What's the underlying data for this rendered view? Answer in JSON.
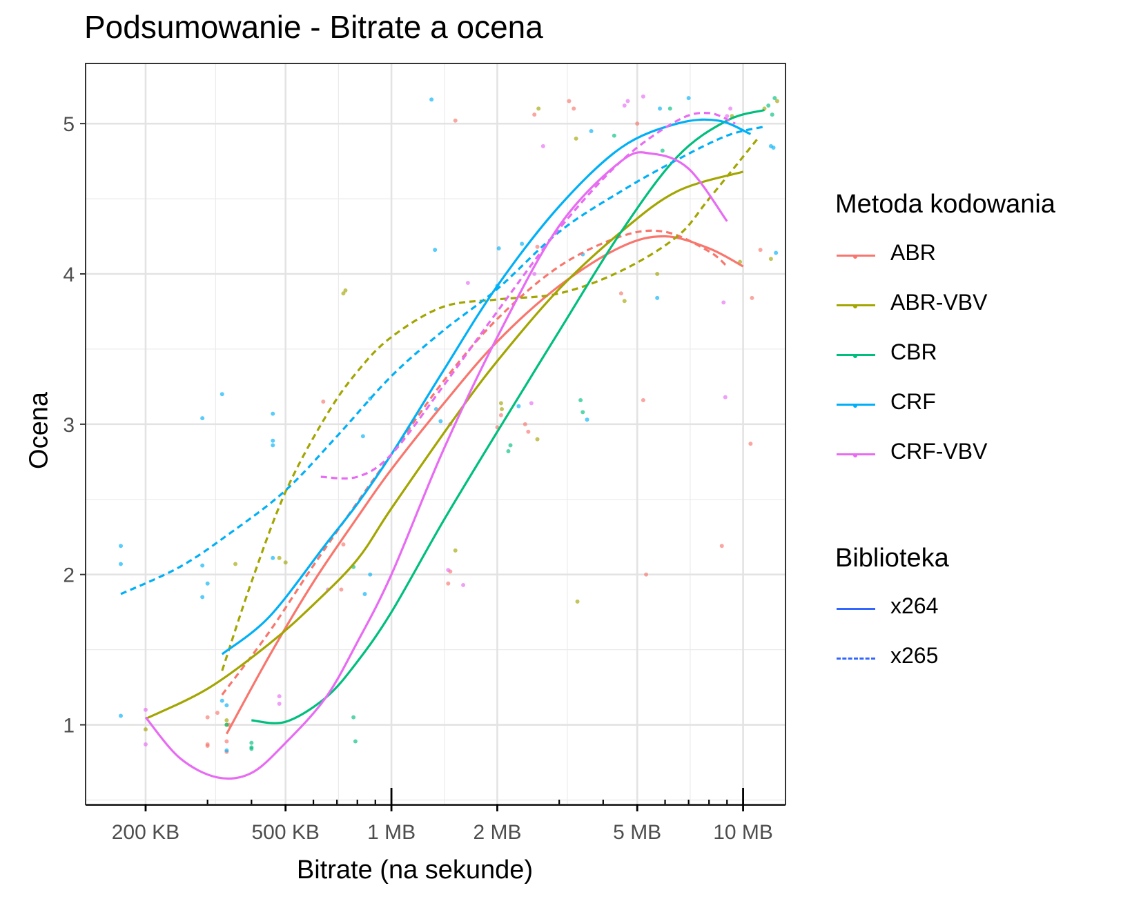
{
  "title": "Podsumowanie - Bitrate a ocena",
  "x_axis_title": "Bitrate  (na sekunde)",
  "y_axis_title": "Ocena",
  "legend_color": {
    "title": "Metoda kodowania",
    "items": [
      {
        "label": "ABR",
        "color": "#F8766D"
      },
      {
        "label": "ABR-VBV",
        "color": "#A3A500"
      },
      {
        "label": "CBR",
        "color": "#00BF7D"
      },
      {
        "label": "CRF",
        "color": "#00B0F6"
      },
      {
        "label": "CRF-VBV",
        "color": "#E76BF3"
      }
    ]
  },
  "legend_linetype": {
    "title": "Biblioteka",
    "items": [
      {
        "label": "x264",
        "linetype": "solid",
        "color": "#3366FF"
      },
      {
        "label": "x265",
        "linetype": "dashed",
        "color": "#3366FF"
      }
    ]
  },
  "chart_data": {
    "type": "scatter",
    "title": "Podsumowanie - Bitrate a ocena",
    "xlabel": "Bitrate  (na sekunde)",
    "ylabel": "Ocena",
    "x_scale": "log10",
    "x_unit": "KB",
    "xlim": [
      135,
      13200
    ],
    "ylim": [
      0.47,
      5.4
    ],
    "x_ticks": [
      {
        "value": 200,
        "label": "200 KB"
      },
      {
        "value": 500,
        "label": "500 KB"
      },
      {
        "value": 1000,
        "label": "1 MB"
      },
      {
        "value": 2000,
        "label": "2 MB"
      },
      {
        "value": 5000,
        "label": "5 MB"
      },
      {
        "value": 10000,
        "label": "10 MB"
      }
    ],
    "x_minor_ticks": [
      300,
      400,
      600,
      700,
      800,
      900,
      3000,
      4000,
      6000,
      7000,
      8000,
      9000
    ],
    "y_ticks": [
      1,
      2,
      3,
      4,
      5
    ],
    "grid": true,
    "legend_position": "right",
    "series": [
      {
        "name": "ABR",
        "library": "x264",
        "color": "#F8766D",
        "x": [
          340,
          450,
          600,
          800,
          1000,
          1400,
          2000,
          3000,
          4500,
          6000,
          8000,
          10000
        ],
        "y": [
          0.94,
          1.46,
          1.95,
          2.38,
          2.7,
          3.13,
          3.55,
          3.92,
          4.18,
          4.25,
          4.17,
          4.05
        ]
      },
      {
        "name": "ABR",
        "library": "x265",
        "color": "#F8766D",
        "x": [
          330,
          450,
          600,
          800,
          1000,
          1400,
          2000,
          3000,
          4500,
          6000,
          8000,
          9000
        ],
        "y": [
          1.2,
          1.62,
          2.06,
          2.48,
          2.8,
          3.28,
          3.7,
          4.05,
          4.25,
          4.28,
          4.15,
          4.05
        ]
      },
      {
        "name": "ABR-VBV",
        "library": "x264",
        "color": "#A3A500",
        "x": [
          200,
          300,
          450,
          600,
          800,
          1000,
          1500,
          2000,
          3000,
          4500,
          6500,
          10000
        ],
        "y": [
          1.04,
          1.24,
          1.54,
          1.8,
          2.1,
          2.44,
          3.03,
          3.42,
          3.9,
          4.28,
          4.55,
          4.68
        ]
      },
      {
        "name": "ABR-VBV",
        "library": "x265",
        "color": "#A3A500",
        "x": [
          330,
          400,
          500,
          650,
          800,
          1000,
          1400,
          2000,
          3000,
          4500,
          6500,
          8000,
          11000
        ],
        "y": [
          1.36,
          1.95,
          2.55,
          3.05,
          3.35,
          3.58,
          3.78,
          3.83,
          3.87,
          4.02,
          4.25,
          4.5,
          4.9
        ]
      },
      {
        "name": "CBR",
        "library": "x264",
        "color": "#00BF7D",
        "x": [
          400,
          500,
          650,
          800,
          1000,
          1400,
          2000,
          3000,
          4500,
          6500,
          9000,
          11500
        ],
        "y": [
          1.03,
          1.02,
          1.18,
          1.42,
          1.75,
          2.35,
          2.95,
          3.62,
          4.28,
          4.78,
          5.02,
          5.09
        ]
      },
      {
        "name": "CRF",
        "library": "x264",
        "color": "#00B0F6",
        "x": [
          330,
          450,
          650,
          800,
          1000,
          1400,
          2000,
          3000,
          4500,
          6500,
          8500,
          10500
        ],
        "y": [
          1.47,
          1.72,
          2.2,
          2.47,
          2.8,
          3.35,
          3.92,
          4.45,
          4.84,
          5.0,
          5.02,
          4.93
        ]
      },
      {
        "name": "CRF",
        "library": "x265",
        "color": "#00B0F6",
        "x": [
          170,
          250,
          350,
          500,
          700,
          1000,
          1400,
          2000,
          3000,
          4500,
          6500,
          9000,
          11500
        ],
        "y": [
          1.87,
          2.05,
          2.28,
          2.56,
          2.92,
          3.32,
          3.62,
          3.9,
          4.28,
          4.55,
          4.76,
          4.92,
          4.98
        ]
      },
      {
        "name": "CRF-VBV",
        "library": "x264",
        "color": "#E76BF3",
        "x": [
          200,
          250,
          320,
          400,
          500,
          650,
          800,
          1000,
          1400,
          2000,
          3000,
          4500,
          5500,
          7000,
          9000
        ],
        "y": [
          1.05,
          0.78,
          0.65,
          0.68,
          0.88,
          1.18,
          1.55,
          2.0,
          2.82,
          3.58,
          4.32,
          4.75,
          4.8,
          4.7,
          4.35
        ]
      },
      {
        "name": "CRF-VBV",
        "library": "x265",
        "color": "#E76BF3",
        "x": [
          630,
          800,
          1000,
          1400,
          2000,
          3000,
          4500,
          6500,
          8000,
          9500
        ],
        "y": [
          2.65,
          2.65,
          2.8,
          3.25,
          3.75,
          4.3,
          4.75,
          5.02,
          5.07,
          5.0
        ]
      }
    ],
    "points": [
      {
        "group": "ABR",
        "color": "#F8766D",
        "x": [
          300,
          320,
          340,
          300,
          345,
          640,
          720,
          730,
          1450,
          1470,
          1520,
          2000,
          2050,
          2400,
          2450,
          3200,
          3300,
          4500,
          5200,
          5300,
          8700,
          10500,
          10600,
          11200,
          300,
          340,
          2550,
          2600,
          5000
        ],
        "y": [
          0.87,
          1.08,
          0.82,
          1.05,
          1.0,
          3.15,
          1.9,
          2.2,
          1.94,
          2.02,
          5.02,
          2.98,
          3.06,
          3.0,
          2.95,
          5.15,
          5.1,
          3.87,
          3.16,
          2.0,
          2.19,
          2.87,
          3.84,
          4.16,
          0.86,
          0.89,
          5.06,
          4.18,
          5.0
        ]
      },
      {
        "group": "ABR-VBV",
        "color": "#A3A500",
        "x": [
          200,
          340,
          360,
          480,
          500,
          730,
          740,
          1520,
          2050,
          2060,
          2600,
          2620,
          3350,
          3380,
          4600,
          5700,
          9800,
          12000,
          11500,
          12500,
          340,
          9300
        ],
        "y": [
          0.97,
          1.03,
          2.07,
          2.11,
          2.08,
          3.87,
          3.89,
          2.16,
          3.14,
          3.1,
          2.9,
          5.1,
          4.9,
          1.82,
          3.82,
          4.0,
          4.08,
          4.1,
          5.1,
          5.15,
          1.0,
          5.05
        ]
      },
      {
        "group": "CBR",
        "color": "#00BF7D",
        "x": [
          340,
          400,
          400,
          780,
          790,
          2150,
          2180,
          3450,
          3500,
          4300,
          5900,
          6200,
          11800,
          12100,
          12300,
          400,
          780
        ],
        "y": [
          1.0,
          0.84,
          0.88,
          1.05,
          0.89,
          2.82,
          2.86,
          3.16,
          3.08,
          4.92,
          4.82,
          5.1,
          5.12,
          5.06,
          5.17,
          0.85,
          2.05
        ]
      },
      {
        "group": "CRF",
        "color": "#00B0F6",
        "x": [
          170,
          170,
          170,
          290,
          290,
          290,
          300,
          330,
          330,
          460,
          460,
          460,
          460,
          830,
          840,
          870,
          870,
          1300,
          1330,
          1380,
          1340,
          2000,
          2020,
          2300,
          2350,
          3500,
          3600,
          3700,
          5700,
          5800,
          7000,
          12000,
          12200,
          12400,
          340,
          340
        ],
        "y": [
          2.19,
          2.07,
          1.06,
          3.04,
          2.06,
          1.85,
          1.94,
          3.2,
          1.16,
          3.07,
          2.89,
          2.86,
          2.11,
          2.92,
          1.87,
          3.17,
          2.0,
          5.16,
          4.16,
          3.02,
          3.1,
          3.92,
          4.17,
          3.12,
          4.2,
          4.13,
          3.03,
          4.95,
          3.84,
          5.1,
          5.17,
          4.85,
          4.84,
          4.14,
          1.13,
          0.83
        ]
      },
      {
        "group": "CRF-VBV",
        "color": "#E76BF3",
        "x": [
          200,
          200,
          480,
          480,
          660,
          1450,
          1470,
          1600,
          1650,
          2500,
          2550,
          2700,
          4600,
          4700,
          5200,
          8800,
          8900,
          9000,
          9200
        ],
        "y": [
          1.1,
          0.87,
          1.19,
          1.14,
          1.9,
          2.03,
          3.0,
          1.93,
          3.94,
          3.14,
          4.0,
          4.85,
          5.12,
          5.15,
          5.18,
          3.81,
          3.18,
          5.05,
          5.1
        ]
      }
    ]
  }
}
